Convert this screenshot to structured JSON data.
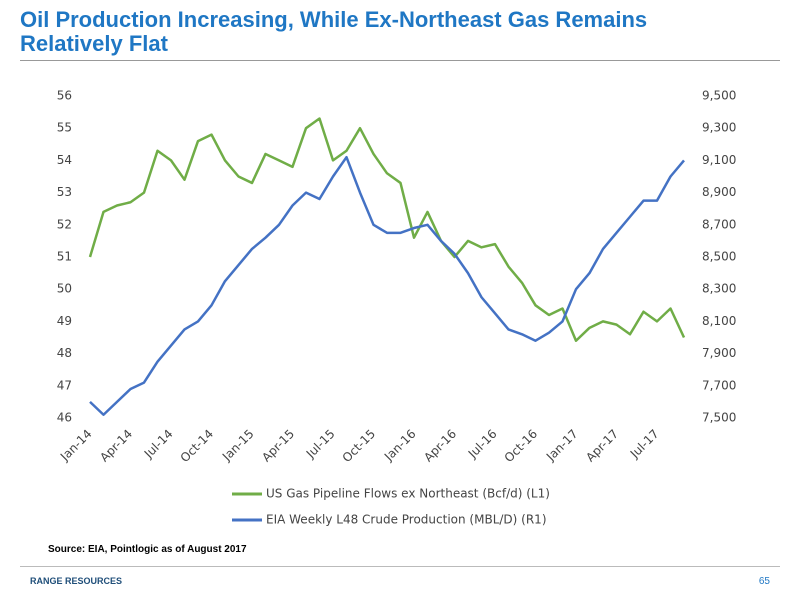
{
  "chart_data": {
    "type": "line",
    "title": "Oil Production Increasing, While Ex-Northeast Gas Remains Relatively Flat",
    "categories": [
      "Jan-14",
      null,
      null,
      "Apr-14",
      null,
      null,
      "Jul-14",
      null,
      null,
      "Oct-14",
      null,
      null,
      "Jan-15",
      null,
      null,
      "Apr-15",
      null,
      null,
      "Jul-15",
      null,
      null,
      "Oct-15",
      null,
      null,
      "Jan-16",
      null,
      null,
      "Apr-16",
      null,
      null,
      "Jul-16",
      null,
      null,
      "Oct-16",
      null,
      null,
      "Jan-17",
      null,
      null,
      "Apr-17",
      null,
      null,
      "Jul-17",
      null,
      null
    ],
    "ylim": [
      46,
      56
    ],
    "yticks": [
      46,
      47,
      48,
      49,
      50,
      51,
      52,
      53,
      54,
      55,
      56
    ],
    "y2lim": [
      7500,
      9500
    ],
    "y2ticks": [
      {
        "value": 7500,
        "label": "7,500"
      },
      {
        "value": 7700,
        "label": "7,700"
      },
      {
        "value": 7900,
        "label": "7,900"
      },
      {
        "value": 8100,
        "label": "8,100"
      },
      {
        "value": 8300,
        "label": "8,300"
      },
      {
        "value": 8500,
        "label": "8,500"
      },
      {
        "value": 8700,
        "label": "8,700"
      },
      {
        "value": 8900,
        "label": "8,900"
      },
      {
        "value": 9100,
        "label": "9,100"
      },
      {
        "value": 9300,
        "label": "9,300"
      },
      {
        "value": 9500,
        "label": "9,500"
      }
    ],
    "grid": false,
    "series": [
      {
        "name": "US Gas Pipeline Flows ex Northeast (Bcf/d) (L1)",
        "color": "#70ad47",
        "values": [
          51.0,
          52.4,
          52.6,
          52.7,
          53.0,
          54.3,
          54.0,
          53.4,
          54.6,
          54.8,
          54.0,
          53.5,
          53.3,
          54.2,
          54.0,
          53.8,
          55.0,
          55.3,
          54.0,
          54.3,
          55.0,
          54.2,
          53.6,
          53.3,
          51.6,
          52.4,
          51.5,
          51.0,
          51.5,
          51.3,
          51.4,
          50.7,
          50.2,
          49.5,
          49.2,
          49.4,
          48.4,
          48.8,
          49.0,
          48.9,
          48.6,
          49.3,
          49.0,
          49.4,
          48.5
        ]
      },
      {
        "name": "EIA Weekly L48 Crude Production (MBL/D) (R1)",
        "color": "#4472c4",
        "axis": "y2",
        "values": [
          7600,
          7520,
          7600,
          7680,
          7720,
          7850,
          7950,
          8050,
          8100,
          8200,
          8350,
          8450,
          8550,
          8620,
          8700,
          8820,
          8900,
          8860,
          9000,
          9120,
          8900,
          8700,
          8650,
          8650,
          8680,
          8700,
          8600,
          8520,
          8400,
          8250,
          8150,
          8050,
          8020,
          7980,
          8030,
          8100,
          8300,
          8400,
          8550,
          8650,
          8750,
          8850,
          8850,
          9000,
          9100
        ]
      }
    ]
  },
  "footer": {
    "source": "Source: EIA, Pointlogic as of August 2017",
    "logo": "RANGE RESOURCES",
    "page": "65"
  }
}
